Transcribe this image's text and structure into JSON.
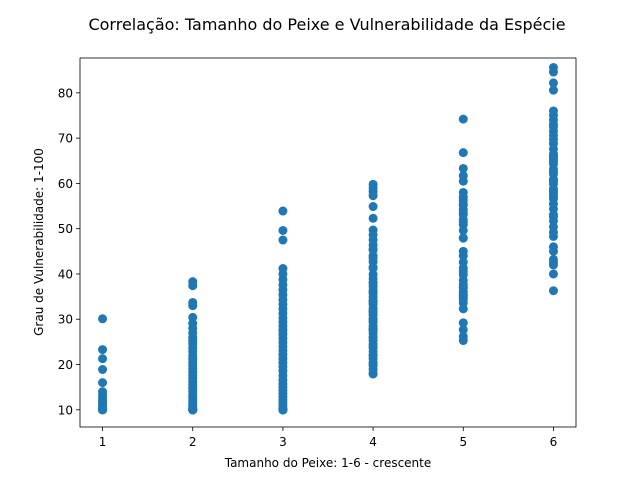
{
  "chart_data": {
    "type": "scatter",
    "title": "Correlação: Tamanho do Peixe e Vulnerabilidade da Espécie",
    "xlabel": "Tamanho do Peixe: 1-6 - crescente",
    "ylabel": "Grau de Vulnerabilidade: 1-100",
    "xlim": [
      0.75,
      6.25
    ],
    "ylim": [
      6.2,
      87.7
    ],
    "xticks": [
      1,
      2,
      3,
      4,
      5,
      6
    ],
    "yticks": [
      10,
      20,
      30,
      40,
      50,
      60,
      70,
      80
    ],
    "grid": false,
    "marker_color": "#1f77b4",
    "series": [
      {
        "x": [
          1,
          1,
          1,
          1,
          1,
          1,
          1,
          1,
          1,
          1,
          1,
          1,
          1,
          1,
          1,
          1,
          1,
          1
        ],
        "y": [
          30.1,
          23.3,
          21.3,
          18.9,
          16.0,
          14.0,
          13.3,
          12.6,
          12.0,
          11.5,
          11.0,
          10.6,
          10.3,
          10.1,
          10.0,
          10.0,
          10.0,
          10.0
        ]
      },
      {
        "x": [
          2,
          2,
          2,
          2,
          2,
          2,
          2,
          2,
          2,
          2,
          2,
          2,
          2,
          2,
          2,
          2,
          2,
          2,
          2,
          2,
          2,
          2,
          2,
          2,
          2,
          2,
          2,
          2,
          2,
          2,
          2,
          2,
          2,
          2,
          2,
          2,
          2,
          2,
          2,
          2,
          2,
          2,
          2,
          2,
          2,
          2
        ],
        "y": [
          38.3,
          37.4,
          33.7,
          33.0,
          30.4,
          29.1,
          28.0,
          27.0,
          26.0,
          25.3,
          24.6,
          23.7,
          22.9,
          22.0,
          21.2,
          20.5,
          19.8,
          19.0,
          18.3,
          17.6,
          16.9,
          16.2,
          15.5,
          14.8,
          14.1,
          13.4,
          12.8,
          12.2,
          11.6,
          11.1,
          10.7,
          10.4,
          10.2,
          10.1,
          10.0,
          10.0,
          10.0,
          10.0,
          10.0,
          10.0,
          10.0,
          10.0,
          10.0,
          10.0,
          10.0,
          10.0
        ]
      },
      {
        "x": [
          3,
          3,
          3,
          3,
          3,
          3,
          3,
          3,
          3,
          3,
          3,
          3,
          3,
          3,
          3,
          3,
          3,
          3,
          3,
          3,
          3,
          3,
          3,
          3,
          3,
          3,
          3,
          3,
          3,
          3,
          3,
          3,
          3,
          3,
          3,
          3,
          3,
          3,
          3,
          3,
          3,
          3,
          3,
          3,
          3,
          3
        ],
        "y": [
          53.9,
          49.6,
          47.5,
          41.2,
          40.0,
          38.8,
          37.6,
          36.5,
          35.4,
          34.3,
          33.3,
          32.3,
          31.3,
          30.3,
          29.4,
          28.5,
          27.6,
          26.7,
          25.8,
          24.9,
          24.0,
          23.1,
          22.2,
          21.3,
          20.4,
          19.5,
          18.6,
          17.6,
          16.6,
          15.7,
          15.0,
          14.3,
          13.6,
          12.9,
          12.2,
          11.5,
          10.8,
          10.3,
          10.0,
          10.0,
          10.0,
          10.0,
          10.0,
          10.0,
          10.0,
          10.0
        ]
      },
      {
        "x": [
          4,
          4,
          4,
          4,
          4,
          4,
          4,
          4,
          4,
          4,
          4,
          4,
          4,
          4,
          4,
          4,
          4,
          4,
          4,
          4,
          4,
          4,
          4,
          4,
          4,
          4,
          4,
          4,
          4,
          4,
          4,
          4,
          4,
          4,
          4,
          4,
          4,
          4,
          4,
          4,
          4,
          4,
          4,
          4,
          4,
          4,
          4,
          4,
          4,
          4,
          4,
          4,
          4,
          4,
          4,
          4,
          4,
          4,
          4,
          4
        ],
        "y": [
          59.8,
          59.0,
          58.2,
          57.3,
          54.9,
          52.3,
          49.7,
          48.6,
          47.5,
          46.4,
          45.3,
          44.0,
          42.7,
          41.3,
          39.9,
          39.0,
          38.1,
          37.3,
          36.5,
          35.7,
          34.9,
          34.1,
          33.3,
          32.5,
          31.7,
          30.9,
          30.1,
          29.3,
          28.5,
          27.7,
          26.9,
          26.1,
          25.3,
          24.5,
          23.7,
          22.9,
          22.1,
          21.3,
          20.5,
          19.7,
          18.9,
          18.0,
          17.9,
          38.0,
          36.0,
          34.0,
          32.0,
          30.0,
          28.0,
          26.0,
          24.0,
          22.0,
          20.0,
          45.5,
          43.5,
          41.5,
          33.5,
          31.5,
          29.5,
          27.5
        ]
      },
      {
        "x": [
          5,
          5,
          5,
          5,
          5,
          5,
          5,
          5,
          5,
          5,
          5,
          5,
          5,
          5,
          5,
          5,
          5,
          5,
          5,
          5,
          5,
          5,
          5,
          5,
          5,
          5,
          5,
          5,
          5,
          5,
          5,
          5,
          5,
          5,
          5,
          5,
          5,
          5,
          5,
          5
        ],
        "y": [
          74.2,
          66.8,
          63.3,
          61.7,
          58.0,
          56.3,
          55.2,
          54.2,
          53.1,
          52.0,
          50.9,
          49.6,
          47.9,
          45.0,
          42.6,
          41.3,
          39.8,
          38.6,
          37.7,
          36.9,
          36.0,
          35.2,
          34.4,
          33.6,
          32.3,
          29.2,
          27.7,
          26.2,
          25.3,
          48.0,
          44.0,
          40.5,
          37.0,
          34.8,
          60.5,
          57.0,
          55.5,
          53.5,
          51.5,
          35.5
        ]
      },
      {
        "x": [
          6,
          6,
          6,
          6,
          6,
          6,
          6,
          6,
          6,
          6,
          6,
          6,
          6,
          6,
          6,
          6,
          6,
          6,
          6,
          6,
          6,
          6,
          6,
          6,
          6,
          6,
          6,
          6,
          6,
          6,
          6,
          6,
          6,
          6,
          6,
          6,
          6,
          6,
          6,
          6,
          6,
          6,
          6,
          6,
          6,
          6
        ],
        "y": [
          85.6,
          84.6,
          82.2,
          80.6,
          76.0,
          75.0,
          71.5,
          70.6,
          68.8,
          67.6,
          66.5,
          65.4,
          64.3,
          63.2,
          62.1,
          61.0,
          59.9,
          58.8,
          57.7,
          56.6,
          55.5,
          54.4,
          53.1,
          51.7,
          50.4,
          49.2,
          48.3,
          43.2,
          42.5,
          42.0,
          40.0,
          36.3,
          74.0,
          72.5,
          69.7,
          60.5,
          58.2,
          64.8,
          57.0,
          62.6,
          66.0,
          52.6,
          45.0,
          46.0,
          73.0,
          65.9
        ]
      }
    ]
  }
}
